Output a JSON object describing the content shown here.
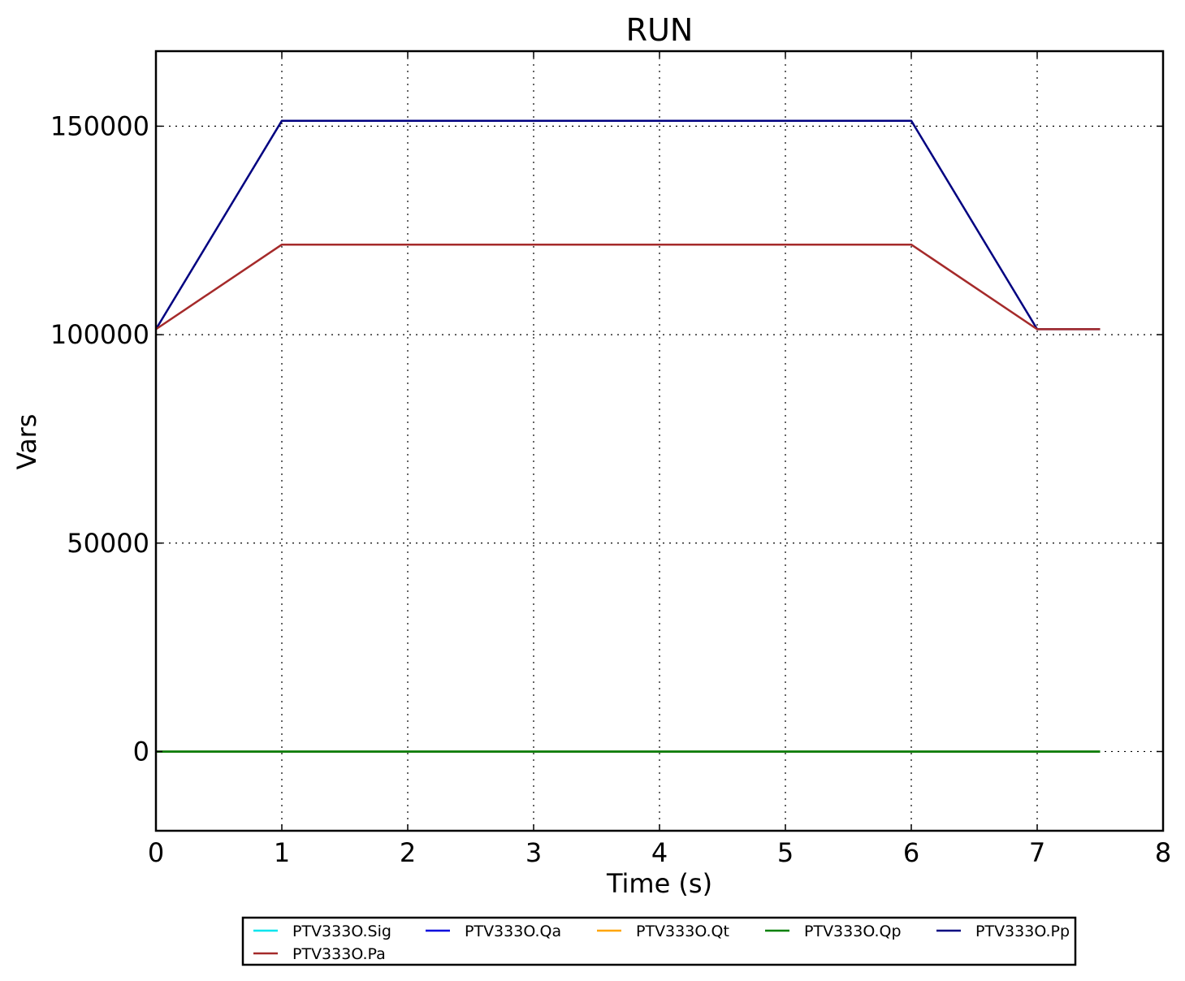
{
  "chart_data": {
    "type": "line",
    "title": "RUN",
    "xlabel": "Time (s)",
    "ylabel": "Vars",
    "xlim": [
      0,
      8
    ],
    "ylim": [
      -19000,
      168000
    ],
    "xticks": [
      0,
      1,
      2,
      3,
      4,
      5,
      6,
      7,
      8
    ],
    "yticks": [
      0,
      50000,
      100000,
      150000
    ],
    "xtick_labels": [
      "0",
      "1",
      "2",
      "3",
      "4",
      "5",
      "6",
      "7",
      "8"
    ],
    "ytick_labels": [
      "0",
      "50000",
      "100000",
      "150000"
    ],
    "grid": true,
    "legend_position": "bottom-center",
    "series": [
      {
        "name": "PTV333O.Sig",
        "color": "#00e5ee",
        "x": [
          0,
          7.5
        ],
        "y": [
          0,
          0
        ]
      },
      {
        "name": "PTV333O.Qa",
        "color": "#0000dd",
        "x": [
          0,
          7.5
        ],
        "y": [
          0,
          0
        ]
      },
      {
        "name": "PTV333O.Qt",
        "color": "#ffa500",
        "x": [
          0,
          7.5
        ],
        "y": [
          0,
          0
        ]
      },
      {
        "name": "PTV333O.Qp",
        "color": "#008000",
        "x": [
          0,
          7.5
        ],
        "y": [
          0,
          0
        ]
      },
      {
        "name": "PTV333O.Pp",
        "color": "#000080",
        "x": [
          0,
          1,
          6,
          7,
          7.5
        ],
        "y": [
          101300,
          151300,
          151300,
          101300,
          101300
        ]
      },
      {
        "name": "PTV333O.Pa",
        "color": "#a52a2a",
        "x": [
          0,
          1,
          6,
          7,
          7.5
        ],
        "y": [
          101300,
          121600,
          121600,
          101300,
          101300
        ]
      }
    ],
    "legend_order": [
      "PTV333O.Sig",
      "PTV333O.Qa",
      "PTV333O.Qt",
      "PTV333O.Qp",
      "PTV333O.Pp",
      "PTV333O.Pa"
    ]
  }
}
